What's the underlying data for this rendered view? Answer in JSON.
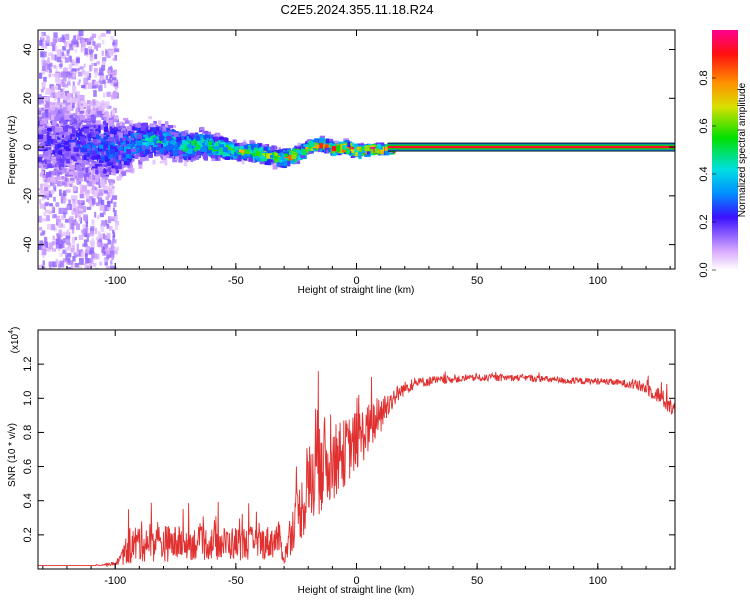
{
  "page": {
    "title": "C2E5.2024.355.11.18.R24"
  },
  "chart_data": [
    {
      "type": "heatmap",
      "xlabel": "Height of straight line (km)",
      "ylabel": "Frequency (Hz)",
      "xlim": [
        -132,
        132
      ],
      "ylim": [
        -50,
        48
      ],
      "xticks": [
        -100,
        -50,
        0,
        50,
        100
      ],
      "yticks": [
        -40,
        -20,
        0,
        20,
        40
      ],
      "colorbar": {
        "label": "Normalized spectral amplitude",
        "range": [
          0,
          1
        ],
        "ticks": [
          "0.0",
          "0.2",
          "0.4",
          "0.6",
          "0.8"
        ]
      },
      "ridge_x": [
        -130,
        -120,
        -110,
        -100,
        -95,
        -90,
        -85,
        -80,
        -75,
        -70,
        -65,
        -60,
        -55,
        -50,
        -45,
        -40,
        -35,
        -30,
        -25,
        -20,
        -15,
        -10,
        -5,
        0,
        5,
        10,
        15,
        20,
        60,
        100,
        132
      ],
      "ridge_y": [
        3,
        2,
        1,
        0,
        1,
        3,
        4,
        3,
        2,
        1,
        2,
        1,
        0,
        -1,
        -1,
        -2,
        -3,
        -4,
        -2,
        1,
        2,
        0,
        1,
        -1,
        0,
        0,
        0,
        0,
        0,
        0,
        0
      ],
      "ridge_spread_hz": [
        20,
        18,
        16,
        12,
        8,
        7,
        6,
        6,
        5,
        5,
        5,
        4,
        3.5,
        3,
        3,
        3,
        3,
        3,
        2.5,
        2,
        2,
        2,
        2,
        2,
        1.5,
        1.5,
        1,
        1,
        1,
        1,
        1
      ],
      "ridge_amplitude": [
        0.2,
        0.2,
        0.25,
        0.3,
        0.35,
        0.4,
        0.45,
        0.45,
        0.5,
        0.5,
        0.5,
        0.55,
        0.6,
        0.6,
        0.6,
        0.65,
        0.65,
        0.7,
        0.7,
        0.75,
        0.75,
        0.8,
        0.85,
        0.9,
        0.9,
        0.9,
        0.95,
        1.0,
        1.0,
        1.0,
        1.0
      ],
      "steady_line": {
        "x_start": 13,
        "x_end": 132,
        "y": 0
      }
    },
    {
      "type": "line",
      "xlabel": "Height of straight line (km)",
      "ylabel": "SNR (10 * v/v)",
      "y_multiplier": "(x10",
      "y_multiplier_exp": "4",
      "y_multiplier_close": ")",
      "xlim": [
        -132,
        132
      ],
      "ylim": [
        0,
        1.4
      ],
      "xticks": [
        -100,
        -50,
        0,
        50,
        100
      ],
      "yticks": [
        "0.2",
        "0.4",
        "0.6",
        "0.8",
        "1.0",
        "1.2"
      ],
      "series": [
        {
          "color": "#e03030",
          "x": [
            -132,
            -110,
            -100,
            -97,
            -95,
            -90,
            -85,
            -80,
            -70,
            -60,
            -50,
            -40,
            -35,
            -32,
            -30,
            -28,
            -25,
            -22,
            -20,
            -18,
            -16,
            -15,
            -13,
            -10,
            -5,
            0,
            5,
            10,
            15,
            20,
            25,
            30,
            40,
            50,
            60,
            70,
            80,
            90,
            100,
            110,
            115,
            120,
            125,
            130,
            132
          ],
          "values": [
            0.02,
            0.02,
            0.03,
            0.07,
            0.12,
            0.16,
            0.16,
            0.15,
            0.15,
            0.15,
            0.15,
            0.15,
            0.16,
            0.18,
            0.05,
            0.18,
            0.3,
            0.38,
            0.45,
            0.55,
            0.7,
            0.82,
            0.6,
            0.62,
            0.68,
            0.75,
            0.82,
            0.9,
            1.0,
            1.06,
            1.09,
            1.1,
            1.11,
            1.12,
            1.12,
            1.12,
            1.11,
            1.1,
            1.1,
            1.09,
            1.08,
            1.06,
            1.02,
            0.96,
            0.92
          ],
          "noise_amplitude": [
            0.0,
            0.0,
            0.01,
            0.05,
            0.1,
            0.12,
            0.12,
            0.11,
            0.1,
            0.1,
            0.1,
            0.1,
            0.1,
            0.1,
            0.02,
            0.12,
            0.15,
            0.2,
            0.25,
            0.3,
            0.45,
            0.5,
            0.25,
            0.22,
            0.2,
            0.18,
            0.15,
            0.12,
            0.06,
            0.04,
            0.03,
            0.03,
            0.02,
            0.02,
            0.02,
            0.02,
            0.02,
            0.02,
            0.02,
            0.02,
            0.03,
            0.04,
            0.05,
            0.06,
            0.06
          ]
        }
      ]
    }
  ]
}
